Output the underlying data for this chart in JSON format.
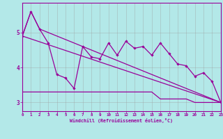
{
  "xlabel": "Windchill (Refroidissement éolien,°C)",
  "x": [
    0,
    1,
    2,
    3,
    4,
    5,
    6,
    7,
    8,
    9,
    10,
    11,
    12,
    13,
    14,
    15,
    16,
    17,
    18,
    19,
    20,
    21,
    22,
    23
  ],
  "line1": [
    4.9,
    5.6,
    5.1,
    4.7,
    3.8,
    3.7,
    3.4,
    4.6,
    4.3,
    4.25,
    4.7,
    4.35,
    4.75,
    4.55,
    4.6,
    4.35,
    4.7,
    4.4,
    4.1,
    4.05,
    3.75,
    3.85,
    3.6,
    3.0
  ],
  "line_diagonal": [
    [
      0,
      4.9
    ],
    [
      23,
      3.0
    ]
  ],
  "line_upper": [
    [
      0,
      4.9
    ],
    [
      1,
      5.6
    ],
    [
      2,
      5.1
    ],
    [
      23,
      3.0
    ]
  ],
  "line_flat_x": [
    0,
    1,
    2,
    3,
    4,
    5,
    6,
    7,
    8,
    9,
    10,
    11,
    12,
    13,
    14,
    15,
    16,
    17,
    18,
    19,
    20,
    21,
    22,
    23
  ],
  "line_flat_y": [
    3.3,
    3.3,
    3.3,
    3.3,
    3.3,
    3.3,
    3.3,
    3.3,
    3.3,
    3.3,
    3.3,
    3.3,
    3.3,
    3.3,
    3.3,
    3.3,
    3.1,
    3.1,
    3.1,
    3.1,
    3.0,
    3.0,
    3.0,
    3.0
  ],
  "line_color": "#990099",
  "bg_color": "#b3e8e8",
  "grid_color": "#999999",
  "ylim": [
    2.75,
    5.85
  ],
  "xlim": [
    0,
    23
  ],
  "yticks": [
    3,
    4,
    5
  ],
  "xticks": [
    0,
    1,
    2,
    3,
    4,
    5,
    6,
    7,
    8,
    9,
    10,
    11,
    12,
    13,
    14,
    15,
    16,
    17,
    18,
    19,
    20,
    21,
    22,
    23
  ]
}
